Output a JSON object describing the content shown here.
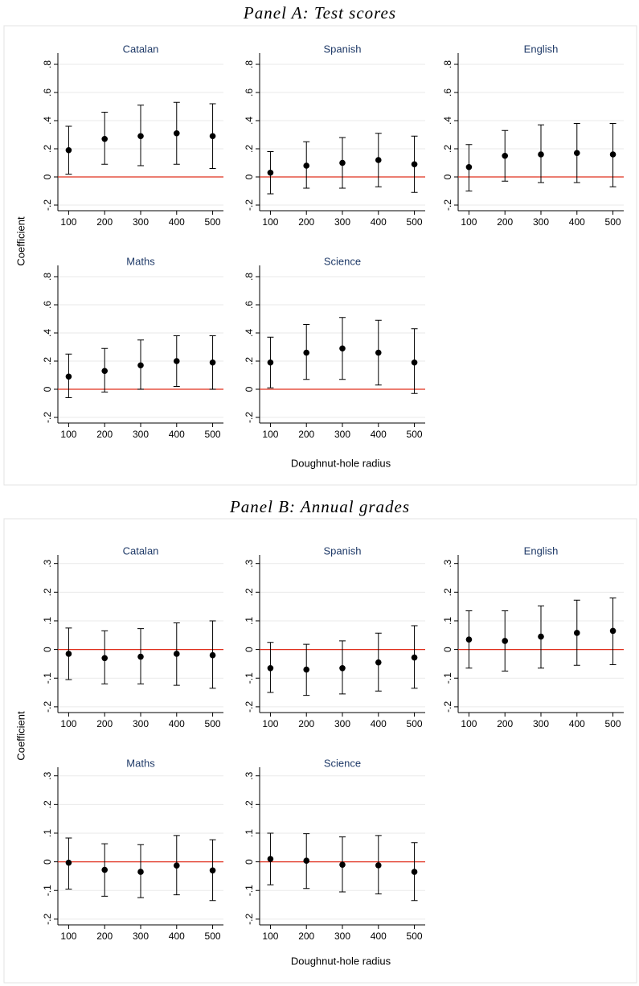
{
  "panels": [
    {
      "title": "Panel A: Test scores",
      "y_label": "Coefficient",
      "x_label": "Doughnut-hole radius"
    },
    {
      "title": "Panel B: Annual grades",
      "y_label": "Coefficient",
      "x_label": "Doughnut-hole radius"
    }
  ],
  "chart_data": [
    {
      "type": "errorbar",
      "title": "Catalan",
      "x": [
        100,
        200,
        300,
        400,
        500
      ],
      "values": [
        0.19,
        0.27,
        0.29,
        0.31,
        0.29
      ],
      "lower": [
        0.02,
        0.09,
        0.08,
        0.09,
        0.06
      ],
      "upper": [
        0.36,
        0.46,
        0.51,
        0.53,
        0.52
      ],
      "xlim": [
        70,
        530
      ],
      "ylim": [
        -0.24,
        0.88
      ],
      "xticks": [
        100,
        200,
        300,
        400,
        500
      ],
      "yticks": [
        {
          "value": -0.2,
          "label": "-.2"
        },
        0,
        {
          "value": 0.2,
          "label": ".2"
        },
        {
          "value": 0.4,
          "label": ".4"
        },
        {
          "value": 0.6,
          "label": ".6"
        },
        {
          "value": 0.8,
          "label": ".8"
        }
      ],
      "color": "#000000",
      "ref_line": 0,
      "ref_color": "#e0301e",
      "grid": true
    },
    {
      "type": "errorbar",
      "title": "Spanish",
      "x": [
        100,
        200,
        300,
        400,
        500
      ],
      "values": [
        0.03,
        0.08,
        0.1,
        0.12,
        0.09
      ],
      "lower": [
        -0.12,
        -0.08,
        -0.08,
        -0.07,
        -0.11
      ],
      "upper": [
        0.18,
        0.25,
        0.28,
        0.31,
        0.29
      ],
      "xlim": [
        70,
        530
      ],
      "ylim": [
        -0.24,
        0.88
      ],
      "xticks": [
        100,
        200,
        300,
        400,
        500
      ],
      "yticks": [
        {
          "value": -0.2,
          "label": "-.2"
        },
        0,
        {
          "value": 0.2,
          "label": ".2"
        },
        {
          "value": 0.4,
          "label": ".4"
        },
        {
          "value": 0.6,
          "label": ".6"
        },
        {
          "value": 0.8,
          "label": ".8"
        }
      ],
      "color": "#000000",
      "ref_line": 0,
      "ref_color": "#e0301e",
      "grid": true
    },
    {
      "type": "errorbar",
      "title": "English",
      "x": [
        100,
        200,
        300,
        400,
        500
      ],
      "values": [
        0.07,
        0.15,
        0.16,
        0.17,
        0.16
      ],
      "lower": [
        -0.1,
        -0.03,
        -0.04,
        -0.04,
        -0.07
      ],
      "upper": [
        0.23,
        0.33,
        0.37,
        0.38,
        0.38
      ],
      "xlim": [
        70,
        530
      ],
      "ylim": [
        -0.24,
        0.88
      ],
      "xticks": [
        100,
        200,
        300,
        400,
        500
      ],
      "yticks": [
        {
          "value": -0.2,
          "label": "-.2"
        },
        0,
        {
          "value": 0.2,
          "label": ".2"
        },
        {
          "value": 0.4,
          "label": ".4"
        },
        {
          "value": 0.6,
          "label": ".6"
        },
        {
          "value": 0.8,
          "label": ".8"
        }
      ],
      "color": "#000000",
      "ref_line": 0,
      "ref_color": "#e0301e",
      "grid": true
    },
    {
      "type": "errorbar",
      "title": "Maths",
      "x": [
        100,
        200,
        300,
        400,
        500
      ],
      "values": [
        0.09,
        0.13,
        0.17,
        0.2,
        0.19
      ],
      "lower": [
        -0.06,
        -0.02,
        0.0,
        0.02,
        0.0
      ],
      "upper": [
        0.25,
        0.29,
        0.35,
        0.38,
        0.38
      ],
      "xlim": [
        70,
        530
      ],
      "ylim": [
        -0.24,
        0.88
      ],
      "xticks": [
        100,
        200,
        300,
        400,
        500
      ],
      "yticks": [
        {
          "value": -0.2,
          "label": "-.2"
        },
        0,
        {
          "value": 0.2,
          "label": ".2"
        },
        {
          "value": 0.4,
          "label": ".4"
        },
        {
          "value": 0.6,
          "label": ".6"
        },
        {
          "value": 0.8,
          "label": ".8"
        }
      ],
      "color": "#000000",
      "ref_line": 0,
      "ref_color": "#e0301e",
      "grid": true
    },
    {
      "type": "errorbar",
      "title": "Science",
      "x": [
        100,
        200,
        300,
        400,
        500
      ],
      "values": [
        0.19,
        0.26,
        0.29,
        0.26,
        0.19
      ],
      "lower": [
        0.01,
        0.07,
        0.07,
        0.03,
        -0.03
      ],
      "upper": [
        0.37,
        0.46,
        0.51,
        0.49,
        0.43
      ],
      "xlim": [
        70,
        530
      ],
      "ylim": [
        -0.24,
        0.88
      ],
      "xticks": [
        100,
        200,
        300,
        400,
        500
      ],
      "yticks": [
        {
          "value": -0.2,
          "label": "-.2"
        },
        0,
        {
          "value": 0.2,
          "label": ".2"
        },
        {
          "value": 0.4,
          "label": ".4"
        },
        {
          "value": 0.6,
          "label": ".6"
        },
        {
          "value": 0.8,
          "label": ".8"
        }
      ],
      "color": "#000000",
      "ref_line": 0,
      "ref_color": "#e0301e",
      "grid": true
    },
    {
      "type": "errorbar",
      "title": "Catalan",
      "x": [
        100,
        200,
        300,
        400,
        500
      ],
      "values": [
        -0.015,
        -0.03,
        -0.025,
        -0.015,
        -0.02
      ],
      "lower": [
        -0.105,
        -0.12,
        -0.12,
        -0.125,
        -0.135
      ],
      "upper": [
        0.075,
        0.065,
        0.073,
        0.093,
        0.1
      ],
      "xlim": [
        70,
        530
      ],
      "ylim": [
        -0.22,
        0.33
      ],
      "xticks": [
        100,
        200,
        300,
        400,
        500
      ],
      "yticks": [
        {
          "value": -0.2,
          "label": "-.2"
        },
        {
          "value": -0.1,
          "label": "-.1"
        },
        0,
        {
          "value": 0.1,
          "label": ".1"
        },
        {
          "value": 0.2,
          "label": ".2"
        },
        {
          "value": 0.3,
          "label": ".3"
        }
      ],
      "color": "#000000",
      "ref_line": 0,
      "ref_color": "#e0301e",
      "grid": true
    },
    {
      "type": "errorbar",
      "title": "Spanish",
      "x": [
        100,
        200,
        300,
        400,
        500
      ],
      "values": [
        -0.065,
        -0.07,
        -0.065,
        -0.045,
        -0.028
      ],
      "lower": [
        -0.15,
        -0.16,
        -0.155,
        -0.145,
        -0.135
      ],
      "upper": [
        0.025,
        0.018,
        0.03,
        0.057,
        0.083
      ],
      "xlim": [
        70,
        530
      ],
      "ylim": [
        -0.22,
        0.33
      ],
      "xticks": [
        100,
        200,
        300,
        400,
        500
      ],
      "yticks": [
        {
          "value": -0.2,
          "label": "-.2"
        },
        {
          "value": -0.1,
          "label": "-.1"
        },
        0,
        {
          "value": 0.1,
          "label": ".1"
        },
        {
          "value": 0.2,
          "label": ".2"
        },
        {
          "value": 0.3,
          "label": ".3"
        }
      ],
      "color": "#000000",
      "ref_line": 0,
      "ref_color": "#e0301e",
      "grid": true
    },
    {
      "type": "errorbar",
      "title": "English",
      "x": [
        100,
        200,
        300,
        400,
        500
      ],
      "values": [
        0.035,
        0.03,
        0.045,
        0.058,
        0.065
      ],
      "lower": [
        -0.065,
        -0.075,
        -0.065,
        -0.055,
        -0.053
      ],
      "upper": [
        0.135,
        0.135,
        0.152,
        0.172,
        0.18
      ],
      "xlim": [
        70,
        530
      ],
      "ylim": [
        -0.22,
        0.33
      ],
      "xticks": [
        100,
        200,
        300,
        400,
        500
      ],
      "yticks": [
        {
          "value": -0.2,
          "label": "-.2"
        },
        {
          "value": -0.1,
          "label": "-.1"
        },
        0,
        {
          "value": 0.1,
          "label": ".1"
        },
        {
          "value": 0.2,
          "label": ".2"
        },
        {
          "value": 0.3,
          "label": ".3"
        }
      ],
      "color": "#000000",
      "ref_line": 0,
      "ref_color": "#e0301e",
      "grid": true
    },
    {
      "type": "errorbar",
      "title": "Maths",
      "x": [
        100,
        200,
        300,
        400,
        500
      ],
      "values": [
        -0.003,
        -0.028,
        -0.035,
        -0.013,
        -0.03
      ],
      "lower": [
        -0.095,
        -0.12,
        -0.125,
        -0.115,
        -0.135
      ],
      "upper": [
        0.083,
        0.063,
        0.06,
        0.092,
        0.077
      ],
      "xlim": [
        70,
        530
      ],
      "ylim": [
        -0.22,
        0.33
      ],
      "xticks": [
        100,
        200,
        300,
        400,
        500
      ],
      "yticks": [
        {
          "value": -0.2,
          "label": "-.2"
        },
        {
          "value": -0.1,
          "label": "-.1"
        },
        0,
        {
          "value": 0.1,
          "label": ".1"
        },
        {
          "value": 0.2,
          "label": ".2"
        },
        {
          "value": 0.3,
          "label": ".3"
        }
      ],
      "color": "#000000",
      "ref_line": 0,
      "ref_color": "#e0301e",
      "grid": true
    },
    {
      "type": "errorbar",
      "title": "Science",
      "x": [
        100,
        200,
        300,
        400,
        500
      ],
      "values": [
        0.01,
        0.004,
        -0.01,
        -0.012,
        -0.035
      ],
      "lower": [
        -0.08,
        -0.093,
        -0.105,
        -0.112,
        -0.135
      ],
      "upper": [
        0.1,
        0.098,
        0.087,
        0.092,
        0.067
      ],
      "xlim": [
        70,
        530
      ],
      "ylim": [
        -0.22,
        0.33
      ],
      "xticks": [
        100,
        200,
        300,
        400,
        500
      ],
      "yticks": [
        {
          "value": -0.2,
          "label": "-.2"
        },
        {
          "value": -0.1,
          "label": "-.1"
        },
        0,
        {
          "value": 0.1,
          "label": ".1"
        },
        {
          "value": 0.2,
          "label": ".2"
        },
        {
          "value": 0.3,
          "label": ".3"
        }
      ],
      "color": "#000000",
      "ref_line": 0,
      "ref_color": "#e0301e",
      "grid": true
    }
  ]
}
